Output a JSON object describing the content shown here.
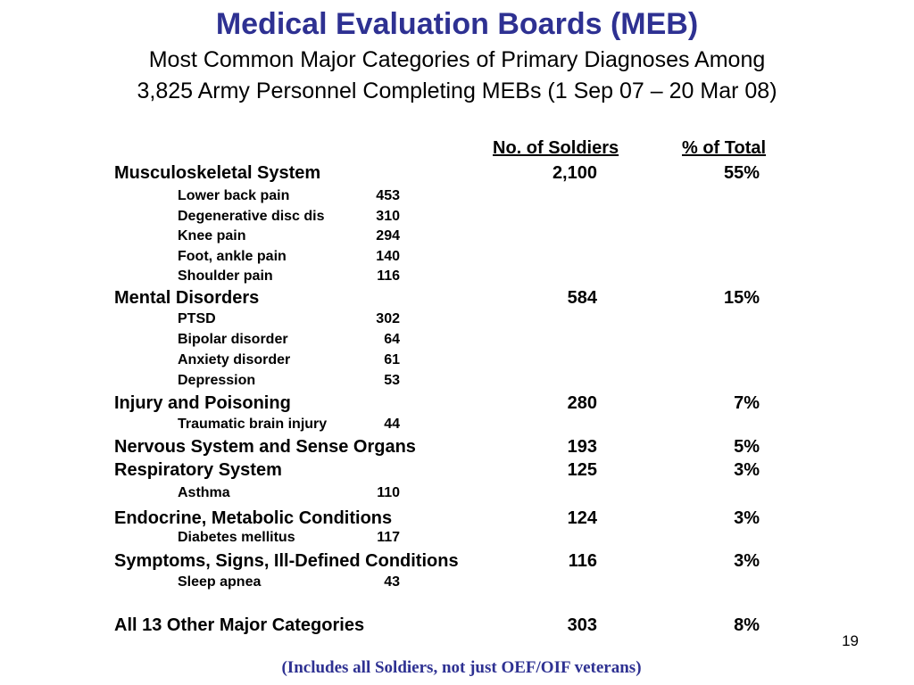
{
  "slide": {
    "title": "Medical Evaluation Boards (MEB)",
    "subtitle_line1": "Most Common Major Categories of Primary Diagnoses Among",
    "subtitle_line2": "3,825 Army Personnel Completing MEBs (1 Sep 07 – 20 Mar 08)",
    "col_soldiers": "No. of Soldiers",
    "col_percent": "% of Total",
    "page_number": "19",
    "footnote": "(Includes all Soldiers, not just OEF/OIF veterans)",
    "title_color": "#2E3192"
  },
  "rows": [
    {
      "kind": "cat",
      "name": "Musculoskeletal System",
      "num": "2,100",
      "pct": "55%"
    },
    {
      "kind": "sub",
      "name": "Lower back pain",
      "num": "453"
    },
    {
      "kind": "sub",
      "name": "Degenerative disc dis",
      "num": "310"
    },
    {
      "kind": "sub",
      "name": "Knee pain",
      "num": "294"
    },
    {
      "kind": "sub",
      "name": "Foot, ankle pain",
      "num": "140"
    },
    {
      "kind": "sub",
      "name": "Shoulder pain",
      "num": "116"
    },
    {
      "kind": "cat",
      "name": "Mental Disorders",
      "num": "584",
      "pct": "15%"
    },
    {
      "kind": "sub",
      "name": "PTSD",
      "num": "302"
    },
    {
      "kind": "sub",
      "name": "Bipolar disorder",
      "num": "64"
    },
    {
      "kind": "sub",
      "name": "Anxiety disorder",
      "num": "61"
    },
    {
      "kind": "sub",
      "name": "Depression",
      "num": "53"
    },
    {
      "kind": "cat",
      "name": "Injury and Poisoning",
      "num": "280",
      "pct": "7%"
    },
    {
      "kind": "sub",
      "name": "Traumatic brain injury",
      "num": "44"
    },
    {
      "kind": "cat",
      "name": "Nervous System and Sense Organs",
      "num": "193",
      "pct": "5%"
    },
    {
      "kind": "cat",
      "name": "Respiratory System",
      "num": "125",
      "pct": "3%"
    },
    {
      "kind": "sub",
      "name": "Asthma",
      "num": "110"
    },
    {
      "kind": "cat",
      "name": "Endocrine, Metabolic Conditions",
      "num": "124",
      "pct": "3%"
    },
    {
      "kind": "sub",
      "name": "Diabetes mellitus",
      "num": "117"
    },
    {
      "kind": "cat",
      "name": "Symptoms, Signs, Ill-Defined Conditions",
      "num": "116",
      "pct": "3%"
    },
    {
      "kind": "sub",
      "name": "Sleep apnea",
      "num": "43"
    },
    {
      "kind": "cat",
      "name": "All 13 Other Major Categories",
      "num": "303",
      "pct": "8%"
    }
  ]
}
